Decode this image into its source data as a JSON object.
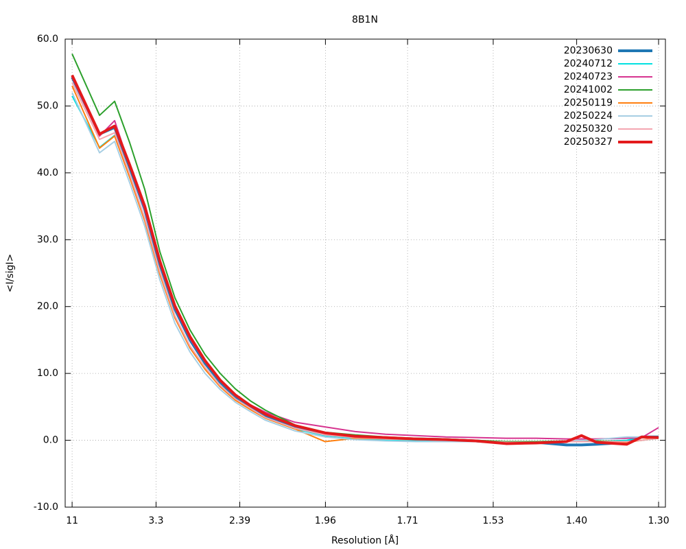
{
  "chart_data": {
    "type": "line",
    "title": "8B1N",
    "x_label": "Resolution [Å]",
    "y_label": "<I/sigI>",
    "x": [
      0.0083,
      0.0356,
      0.0506,
      0.0656,
      0.0806,
      0.0956,
      0.1106,
      0.1256,
      0.1406,
      0.1556,
      0.1706,
      0.1856,
      0.2006,
      0.23,
      0.26,
      0.29,
      0.32,
      0.35,
      0.38,
      0.41,
      0.44,
      0.47,
      0.5,
      0.515,
      0.53,
      0.56,
      0.575,
      0.5917
    ],
    "series": [
      {
        "name": "20230630",
        "color": "#1f77b4",
        "line_width": 4,
        "values": [
          54.3,
          45.8,
          46.8,
          40.8,
          34.5,
          26.3,
          19.6,
          15.0,
          11.5,
          8.7,
          6.5,
          5.0,
          3.6,
          2.0,
          1.0,
          0.5,
          0.3,
          0.2,
          0.1,
          -0.1,
          -0.4,
          -0.3,
          -0.7,
          -0.7,
          -0.6,
          -0.3,
          0.5,
          0.5
        ]
      },
      {
        "name": "20240712",
        "color": "#00e0e0",
        "line_width": 2,
        "values": [
          51.5,
          43.8,
          45.6,
          39.5,
          33.0,
          25.0,
          18.5,
          14.0,
          10.8,
          8.2,
          6.1,
          4.7,
          3.3,
          1.7,
          0.7,
          0.3,
          0.0,
          -0.1,
          -0.1,
          -0.2,
          -0.4,
          -0.3,
          -0.2,
          -0.2,
          -0.2,
          0.0,
          0.5,
          0.5
        ]
      },
      {
        "name": "20240723",
        "color": "#d6338f",
        "line_width": 2,
        "values": [
          54.3,
          45.5,
          47.8,
          41.0,
          34.5,
          26.5,
          19.8,
          15.2,
          11.7,
          9.0,
          6.8,
          5.3,
          4.2,
          2.7,
          2.0,
          1.3,
          0.9,
          0.7,
          0.5,
          0.4,
          0.3,
          0.3,
          0.2,
          0.2,
          0.2,
          0.3,
          0.4,
          1.9
        ]
      },
      {
        "name": "20241002",
        "color": "#2ca02c",
        "line_width": 2,
        "values": [
          57.8,
          48.6,
          50.7,
          44.5,
          37.5,
          28.2,
          21.3,
          16.5,
          12.8,
          10.0,
          7.7,
          5.9,
          4.5,
          2.3,
          1.2,
          0.8,
          0.5,
          0.3,
          0.2,
          0.0,
          -0.2,
          -0.2,
          -0.1,
          -0.1,
          -0.1,
          -0.2,
          0.0,
          0.3
        ]
      },
      {
        "name": "20250119",
        "color": "#ff7f0e",
        "line_width": 2,
        "values": [
          53.0,
          43.7,
          45.5,
          39.3,
          32.8,
          24.8,
          18.3,
          13.8,
          10.6,
          8.0,
          6.0,
          4.6,
          3.3,
          1.7,
          -0.2,
          0.3,
          0.2,
          0.1,
          0.0,
          -0.1,
          -0.4,
          -0.3,
          -0.2,
          -0.2,
          -0.2,
          -0.3,
          0.0,
          0.5
        ]
      },
      {
        "name": "20250224",
        "color": "#a6cee3",
        "line_width": 2,
        "values": [
          52.0,
          43.0,
          44.7,
          38.5,
          32.0,
          24.0,
          17.5,
          13.2,
          10.0,
          7.6,
          5.7,
          4.3,
          3.0,
          1.4,
          0.5,
          0.1,
          -0.1,
          -0.2,
          -0.2,
          -0.2,
          -0.3,
          -0.3,
          -0.1,
          0.0,
          0.1,
          0.5,
          0.5,
          0.3
        ]
      },
      {
        "name": "20250320",
        "color": "#f4a6b0",
        "line_width": 2,
        "values": [
          53.5,
          45.0,
          46.0,
          39.8,
          33.2,
          25.2,
          18.6,
          14.1,
          10.9,
          8.2,
          6.2,
          4.8,
          3.4,
          1.8,
          0.8,
          0.4,
          0.2,
          0.1,
          0.0,
          -0.1,
          -0.3,
          -0.3,
          -0.2,
          -0.2,
          -0.2,
          -0.2,
          0.0,
          0.3
        ]
      },
      {
        "name": "20250327",
        "color": "#e31a1c",
        "line_width": 4,
        "values": [
          54.6,
          45.8,
          47.0,
          41.2,
          35.0,
          26.8,
          20.1,
          15.5,
          11.9,
          9.0,
          6.8,
          5.2,
          3.9,
          2.2,
          1.1,
          0.6,
          0.4,
          0.2,
          0.1,
          -0.1,
          -0.5,
          -0.4,
          -0.2,
          0.7,
          -0.3,
          -0.6,
          0.5,
          0.4
        ]
      }
    ],
    "xlim": [
      0.0014,
      0.5985
    ],
    "xticks": [
      {
        "value": 0.0083,
        "label": "11"
      },
      {
        "value": 0.0918,
        "label": "3.3"
      },
      {
        "value": 0.1751,
        "label": "2.39"
      },
      {
        "value": 0.2603,
        "label": "1.96"
      },
      {
        "value": 0.342,
        "label": "1.71"
      },
      {
        "value": 0.4272,
        "label": "1.53"
      },
      {
        "value": 0.5102,
        "label": "1.40"
      },
      {
        "value": 0.5917,
        "label": "1.30"
      }
    ],
    "ylim": [
      -10,
      60
    ],
    "yticks": [
      {
        "value": -10,
        "label": "-10.0"
      },
      {
        "value": 0,
        "label": "0.0"
      },
      {
        "value": 10,
        "label": "10.0"
      },
      {
        "value": 20,
        "label": "20.0"
      },
      {
        "value": 30,
        "label": "30.0"
      },
      {
        "value": 40,
        "label": "40.0"
      },
      {
        "value": 50,
        "label": "50.0"
      },
      {
        "value": 60,
        "label": "60.0"
      }
    ],
    "grid": true,
    "legend": "top-right"
  }
}
